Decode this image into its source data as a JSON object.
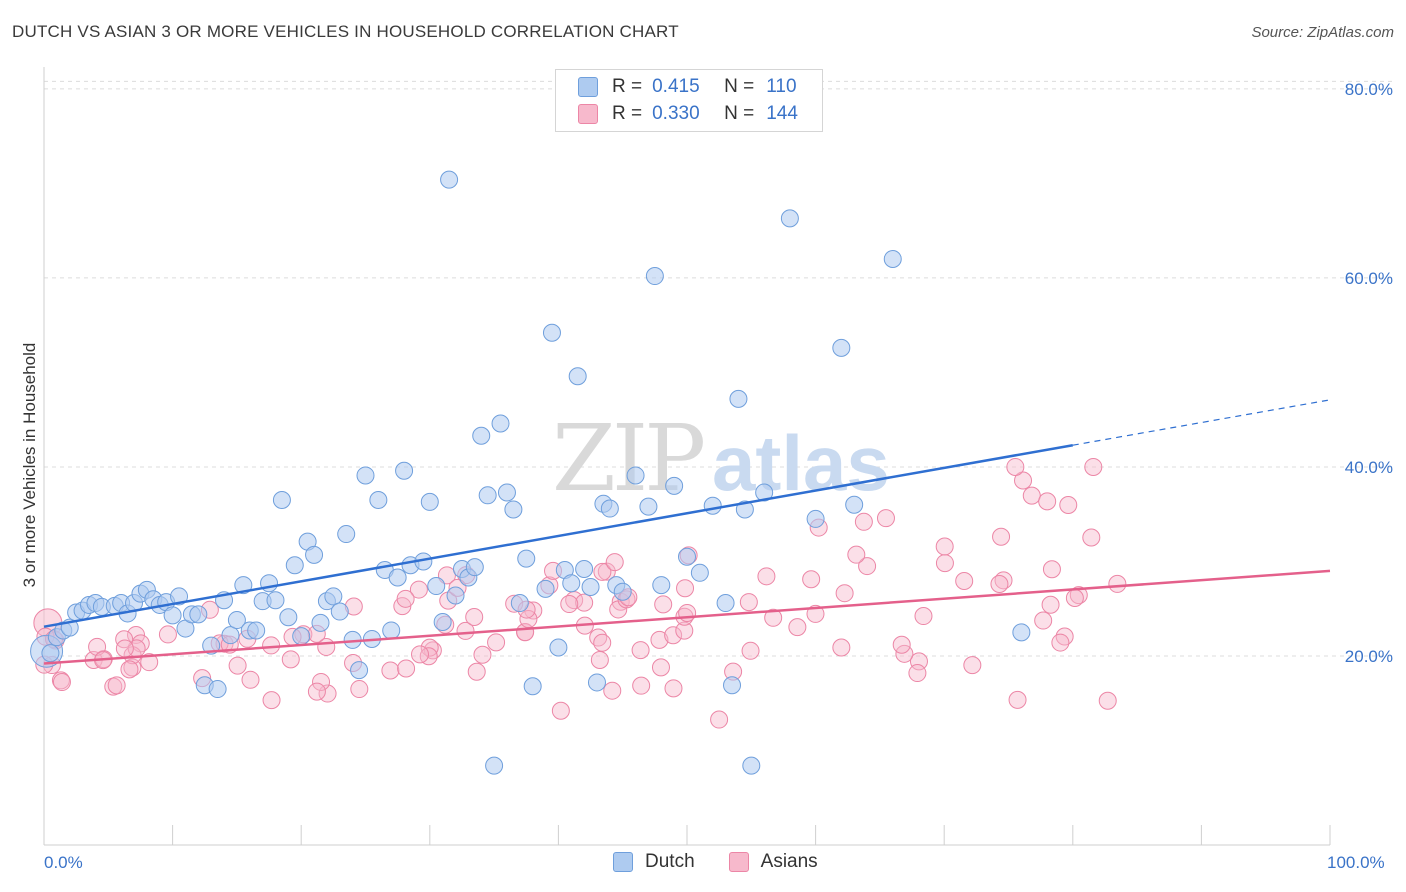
{
  "title": "DUTCH VS ASIAN 3 OR MORE VEHICLES IN HOUSEHOLD CORRELATION CHART",
  "source": "Source: ZipAtlas.com",
  "watermark": "ZIPatlas",
  "legend": {
    "rows": [
      {
        "r_label": "R =",
        "r_value": "0.415",
        "n_label": "N =",
        "n_value": "110"
      },
      {
        "r_label": "R =",
        "r_value": "0.330",
        "n_label": "N =",
        "n_value": "144"
      }
    ]
  },
  "bottom_legend": {
    "dutch": "Dutch",
    "asians": "Asians"
  },
  "x_labels": {
    "left": "0.0%",
    "right": "100.0%"
  },
  "colors": {
    "dutch_fill": "#aecbf0",
    "dutch_stroke": "#6f9fdc",
    "dutch_line": "#2f6fd1",
    "asian_fill": "#f7b9cc",
    "asian_stroke": "#ec86a6",
    "asian_line": "#e4608b",
    "tick_text": "#3a73c8",
    "grid": "#dcdcdc"
  },
  "chart_data": {
    "type": "scatter",
    "title": "DUTCH VS ASIAN 3 OR MORE VEHICLES IN HOUSEHOLD CORRELATION CHART",
    "xlabel": "",
    "ylabel": "3 or more Vehicles in Household",
    "xlim": [
      0,
      100
    ],
    "ylim": [
      0,
      82
    ],
    "y_ticks": [
      20,
      40,
      60,
      80
    ],
    "y_tick_labels": [
      "20.0%",
      "40.0%",
      "60.0%",
      "80.0%"
    ],
    "grid": true,
    "legend_position": "top-center",
    "series": [
      {
        "name": "Dutch",
        "r": 0.415,
        "n": 110,
        "trend": {
          "x0": 0,
          "y0": 23.1,
          "x1": 80,
          "y1": 42.3,
          "dashed_to_x": 100,
          "dashed_to_y": 47.1
        },
        "points": [
          [
            0.5,
            20.3
          ],
          [
            1,
            22
          ],
          [
            1.5,
            22.7
          ],
          [
            2,
            23
          ],
          [
            2.5,
            24.6
          ],
          [
            3,
            24.8
          ],
          [
            3.5,
            25.4
          ],
          [
            4,
            25.6
          ],
          [
            4.5,
            25.2
          ],
          [
            5.5,
            25.3
          ],
          [
            6,
            25.6
          ],
          [
            6.5,
            24.5
          ],
          [
            7,
            25.6
          ],
          [
            7.5,
            26.6
          ],
          [
            8,
            27
          ],
          [
            8.5,
            26
          ],
          [
            9,
            25.4
          ],
          [
            9.5,
            25.7
          ],
          [
            10,
            24.3
          ],
          [
            10.5,
            26.3
          ],
          [
            11,
            22.9
          ],
          [
            11.5,
            24.4
          ],
          [
            12,
            24.4
          ],
          [
            12.5,
            16.9
          ],
          [
            13,
            21.1
          ],
          [
            13.5,
            16.5
          ],
          [
            14,
            25.9
          ],
          [
            14.5,
            22.2
          ],
          [
            15,
            23.8
          ],
          [
            15.5,
            27.5
          ],
          [
            16,
            22.7
          ],
          [
            16.5,
            22.7
          ],
          [
            17,
            25.8
          ],
          [
            17.5,
            27.7
          ],
          [
            18,
            25.9
          ],
          [
            18.5,
            36.5
          ],
          [
            19,
            24.1
          ],
          [
            19.5,
            29.6
          ],
          [
            20,
            22.1
          ],
          [
            20.5,
            32.1
          ],
          [
            21,
            30.7
          ],
          [
            21.5,
            23.5
          ],
          [
            22,
            25.8
          ],
          [
            22.5,
            26.3
          ],
          [
            23,
            24.7
          ],
          [
            23.5,
            32.9
          ],
          [
            24,
            21.7
          ],
          [
            24.5,
            18.5
          ],
          [
            25,
            39.1
          ],
          [
            25.5,
            21.8
          ],
          [
            26,
            36.5
          ],
          [
            26.5,
            29.1
          ],
          [
            27,
            22.7
          ],
          [
            27.5,
            28.3
          ],
          [
            28,
            39.6
          ],
          [
            28.5,
            29.6
          ],
          [
            29.5,
            30
          ],
          [
            30,
            36.3
          ],
          [
            30.5,
            27.4
          ],
          [
            31,
            23.6
          ],
          [
            31.5,
            70.4
          ],
          [
            32,
            26.4
          ],
          [
            32.5,
            29.2
          ],
          [
            33,
            28.3
          ],
          [
            33.5,
            29.4
          ],
          [
            34,
            43.3
          ],
          [
            34.5,
            37
          ],
          [
            35,
            8.4
          ],
          [
            35.5,
            44.6
          ],
          [
            36,
            37.3
          ],
          [
            36.5,
            35.5
          ],
          [
            37,
            25.6
          ],
          [
            37.5,
            30.3
          ],
          [
            38,
            16.8
          ],
          [
            39,
            27.1
          ],
          [
            39.5,
            54.2
          ],
          [
            40,
            20.9
          ],
          [
            40.5,
            29.1
          ],
          [
            41,
            27.7
          ],
          [
            41.5,
            49.6
          ],
          [
            42,
            29.2
          ],
          [
            42.5,
            27.3
          ],
          [
            43,
            17.2
          ],
          [
            43.5,
            36.1
          ],
          [
            44,
            35.6
          ],
          [
            44.5,
            27.5
          ],
          [
            45,
            26.8
          ],
          [
            46,
            39.1
          ],
          [
            47,
            35.8
          ],
          [
            47.5,
            60.2
          ],
          [
            48,
            27.5
          ],
          [
            49,
            38
          ],
          [
            50,
            30.5
          ],
          [
            51,
            28.8
          ],
          [
            52,
            35.9
          ],
          [
            53,
            25.6
          ],
          [
            53.5,
            16.9
          ],
          [
            54,
            47.2
          ],
          [
            54.5,
            35.5
          ],
          [
            55,
            8.4
          ],
          [
            56,
            37.3
          ],
          [
            58,
            66.3
          ],
          [
            60,
            34.5
          ],
          [
            62,
            52.6
          ],
          [
            63,
            36
          ],
          [
            66,
            62
          ],
          [
            76,
            22.5
          ]
        ]
      },
      {
        "name": "Asians",
        "r": 0.33,
        "n": 144,
        "trend": {
          "x0": 0,
          "y0": 19.2,
          "x1": 100,
          "y1": 29
        }
      }
    ]
  }
}
